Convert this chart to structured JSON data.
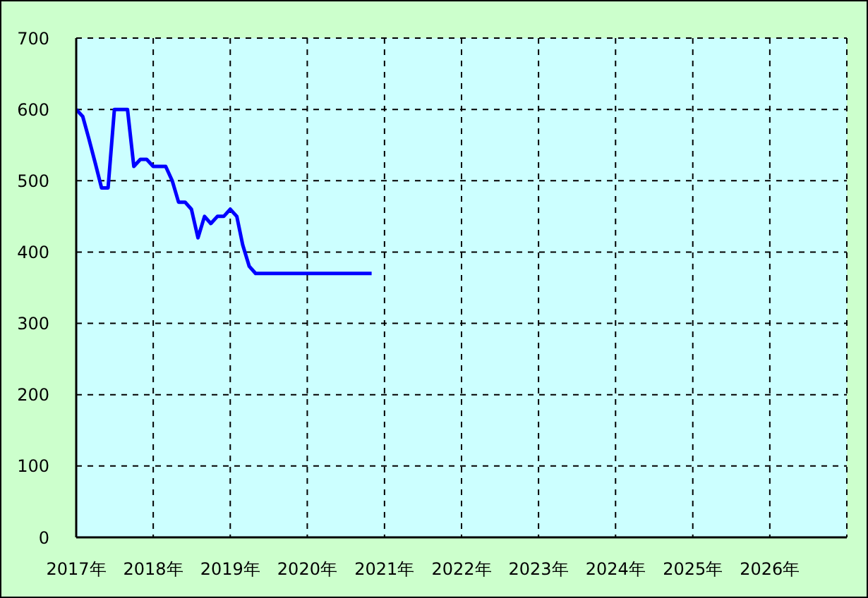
{
  "chart_data": {
    "type": "line",
    "x": [
      "2017-01",
      "2017-02",
      "2017-03",
      "2017-04",
      "2017-05",
      "2017-06",
      "2017-07",
      "2017-08",
      "2017-09",
      "2017-10",
      "2017-11",
      "2017-12",
      "2018-01",
      "2018-02",
      "2018-03",
      "2018-04",
      "2018-05",
      "2018-06",
      "2018-07",
      "2018-08",
      "2018-09",
      "2018-10",
      "2018-11",
      "2018-12",
      "2019-01",
      "2019-02",
      "2019-03",
      "2019-04",
      "2019-05",
      "2019-06",
      "2019-07",
      "2019-08",
      "2019-09",
      "2019-10",
      "2019-11",
      "2019-12",
      "2020-01",
      "2020-02",
      "2020-03",
      "2020-04",
      "2020-05",
      "2020-06",
      "2020-07",
      "2020-08",
      "2020-09",
      "2020-10",
      "2020-11"
    ],
    "series": [
      {
        "color": "#0000ff",
        "values": [
          600,
          590,
          560,
          525,
          490,
          490,
          600,
          600,
          600,
          520,
          530,
          530,
          520,
          520,
          520,
          500,
          470,
          470,
          460,
          420,
          450,
          440,
          450,
          450,
          460,
          450,
          410,
          380,
          370,
          370,
          370,
          370,
          370,
          370,
          370,
          370,
          370,
          370,
          370,
          370,
          370,
          370,
          370,
          370,
          370,
          370,
          370
        ]
      }
    ],
    "xlim": [
      "2017",
      "2027"
    ],
    "xticks": [
      {
        "value": "2017",
        "label": "2017年"
      },
      {
        "value": "2018",
        "label": "2018年"
      },
      {
        "value": "2019",
        "label": "2019年"
      },
      {
        "value": "2020",
        "label": "2020年"
      },
      {
        "value": "2021",
        "label": "2021年"
      },
      {
        "value": "2022",
        "label": "2022年"
      },
      {
        "value": "2023",
        "label": "2023年"
      },
      {
        "value": "2024",
        "label": "2024年"
      },
      {
        "value": "2025",
        "label": "2025年"
      },
      {
        "value": "2026",
        "label": "2026年"
      }
    ],
    "ylim": [
      0,
      700
    ],
    "yticks": [
      0,
      100,
      200,
      300,
      400,
      500,
      600,
      700
    ],
    "grid": true,
    "marker": "none",
    "line_style": "solid"
  }
}
